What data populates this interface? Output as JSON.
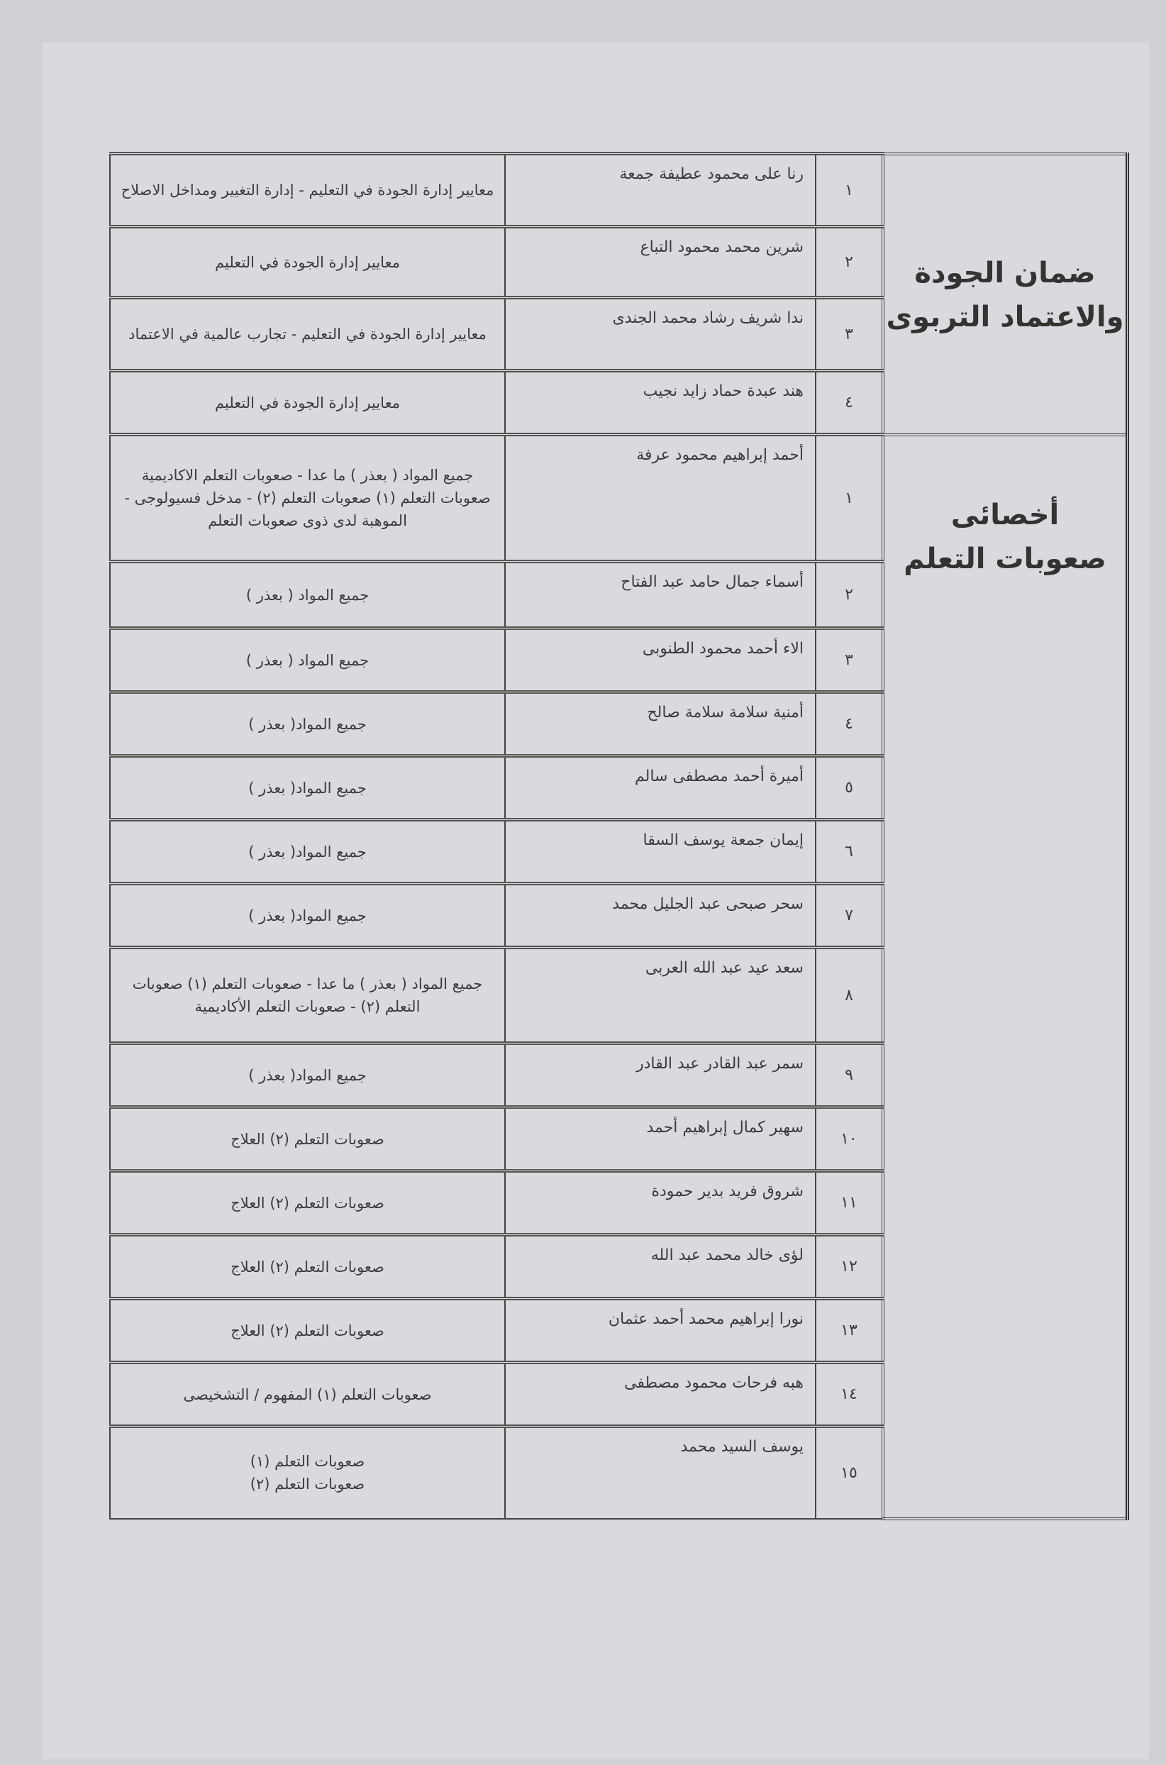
{
  "groups": [
    {
      "category": "ضمان الجودة والاعتماد التربوى",
      "category_lines": [
        "ضمان الجودة",
        "والاعتماد التربوى"
      ],
      "rows": [
        {
          "no": "١",
          "name": "رنا على محمود عطيفة جمعة",
          "subject": "معايير إدارة الجودة في التعليم - إدارة التغيير ومداخل الاصلاح"
        },
        {
          "no": "٢",
          "name": "شرين محمد محمود التباع",
          "subject": "معايير إدارة الجودة في التعليم"
        },
        {
          "no": "٣",
          "name": "ندا شريف رشاد محمد الجندى",
          "subject": "معايير إدارة الجودة في التعليم - تجارب عالمية في الاعتماد"
        },
        {
          "no": "٤",
          "name": "هند عبدة حماد زايد نجيب",
          "subject": "معايير إدارة الجودة في التعليم"
        }
      ]
    },
    {
      "category": "أخصائى صعوبات التعلم",
      "category_lines": [
        "أخصائى",
        "صعوبات التعلم"
      ],
      "rows": [
        {
          "no": "١",
          "name": "أحمد إبراهيم محمود عرفة",
          "subject": "جميع المواد ( بعذر ) ما عدا - صعوبات التعلم الاكاديمية صعوبات التعلم (١) صعوبات التعلم (٢) - مدخل فسيولوجى - الموهبة لدى ذوى صعوبات التعلم"
        },
        {
          "no": "٢",
          "name": "أسماء جمال حامد عبد الفتاح",
          "subject": "جميع المواد ( بعذر )"
        },
        {
          "no": "٣",
          "name": "الاء أحمد محمود الطنوبى",
          "subject": "جميع المواد ( بعذر )"
        },
        {
          "no": "٤",
          "name": "أمنية سلامة سلامة صالح",
          "subject": "جميع المواد( بعذر )"
        },
        {
          "no": "٥",
          "name": "أميرة أحمد مصطفى سالم",
          "subject": "جميع المواد( بعذر )"
        },
        {
          "no": "٦",
          "name": "إيمان جمعة يوسف السقا",
          "subject": "جميع المواد( بعذر )"
        },
        {
          "no": "٧",
          "name": "سحر صبحى عبد الجليل محمد",
          "subject": "جميع المواد( بعذر )"
        },
        {
          "no": "٨",
          "name": "سعد عيد عبد الله العربى",
          "subject": "جميع المواد ( بعذر ) ما عدا - صعوبات التعلم (١) صعوبات التعلم (٢) - صعوبات التعلم الأكاديمية"
        },
        {
          "no": "٩",
          "name": "سمر عبد القادر عبد القادر",
          "subject": "جميع المواد( بعذر )"
        },
        {
          "no": "١٠",
          "name": "سهير كمال إبراهيم أحمد",
          "subject": "صعوبات التعلم (٢) العلاج"
        },
        {
          "no": "١١",
          "name": "شروق فريد بدير حمودة",
          "subject": "صعوبات التعلم (٢) العلاج"
        },
        {
          "no": "١٢",
          "name": "لؤى خالد محمد عبد الله",
          "subject": "صعوبات التعلم (٢) العلاج"
        },
        {
          "no": "١٣",
          "name": "نورا إبراهيم محمد أحمد عثمان",
          "subject": "صعوبات التعلم (٢) العلاج"
        },
        {
          "no": "١٤",
          "name": "هبه فرحات محمود مصطفى",
          "subject": "صعوبات التعلم (١) المفهوم / التشخيصى"
        },
        {
          "no": "١٥",
          "name": "يوسف السيد محمد",
          "subject": "صعوبات التعلم (١)\nصعوبات التعلم (٢)"
        }
      ]
    }
  ]
}
